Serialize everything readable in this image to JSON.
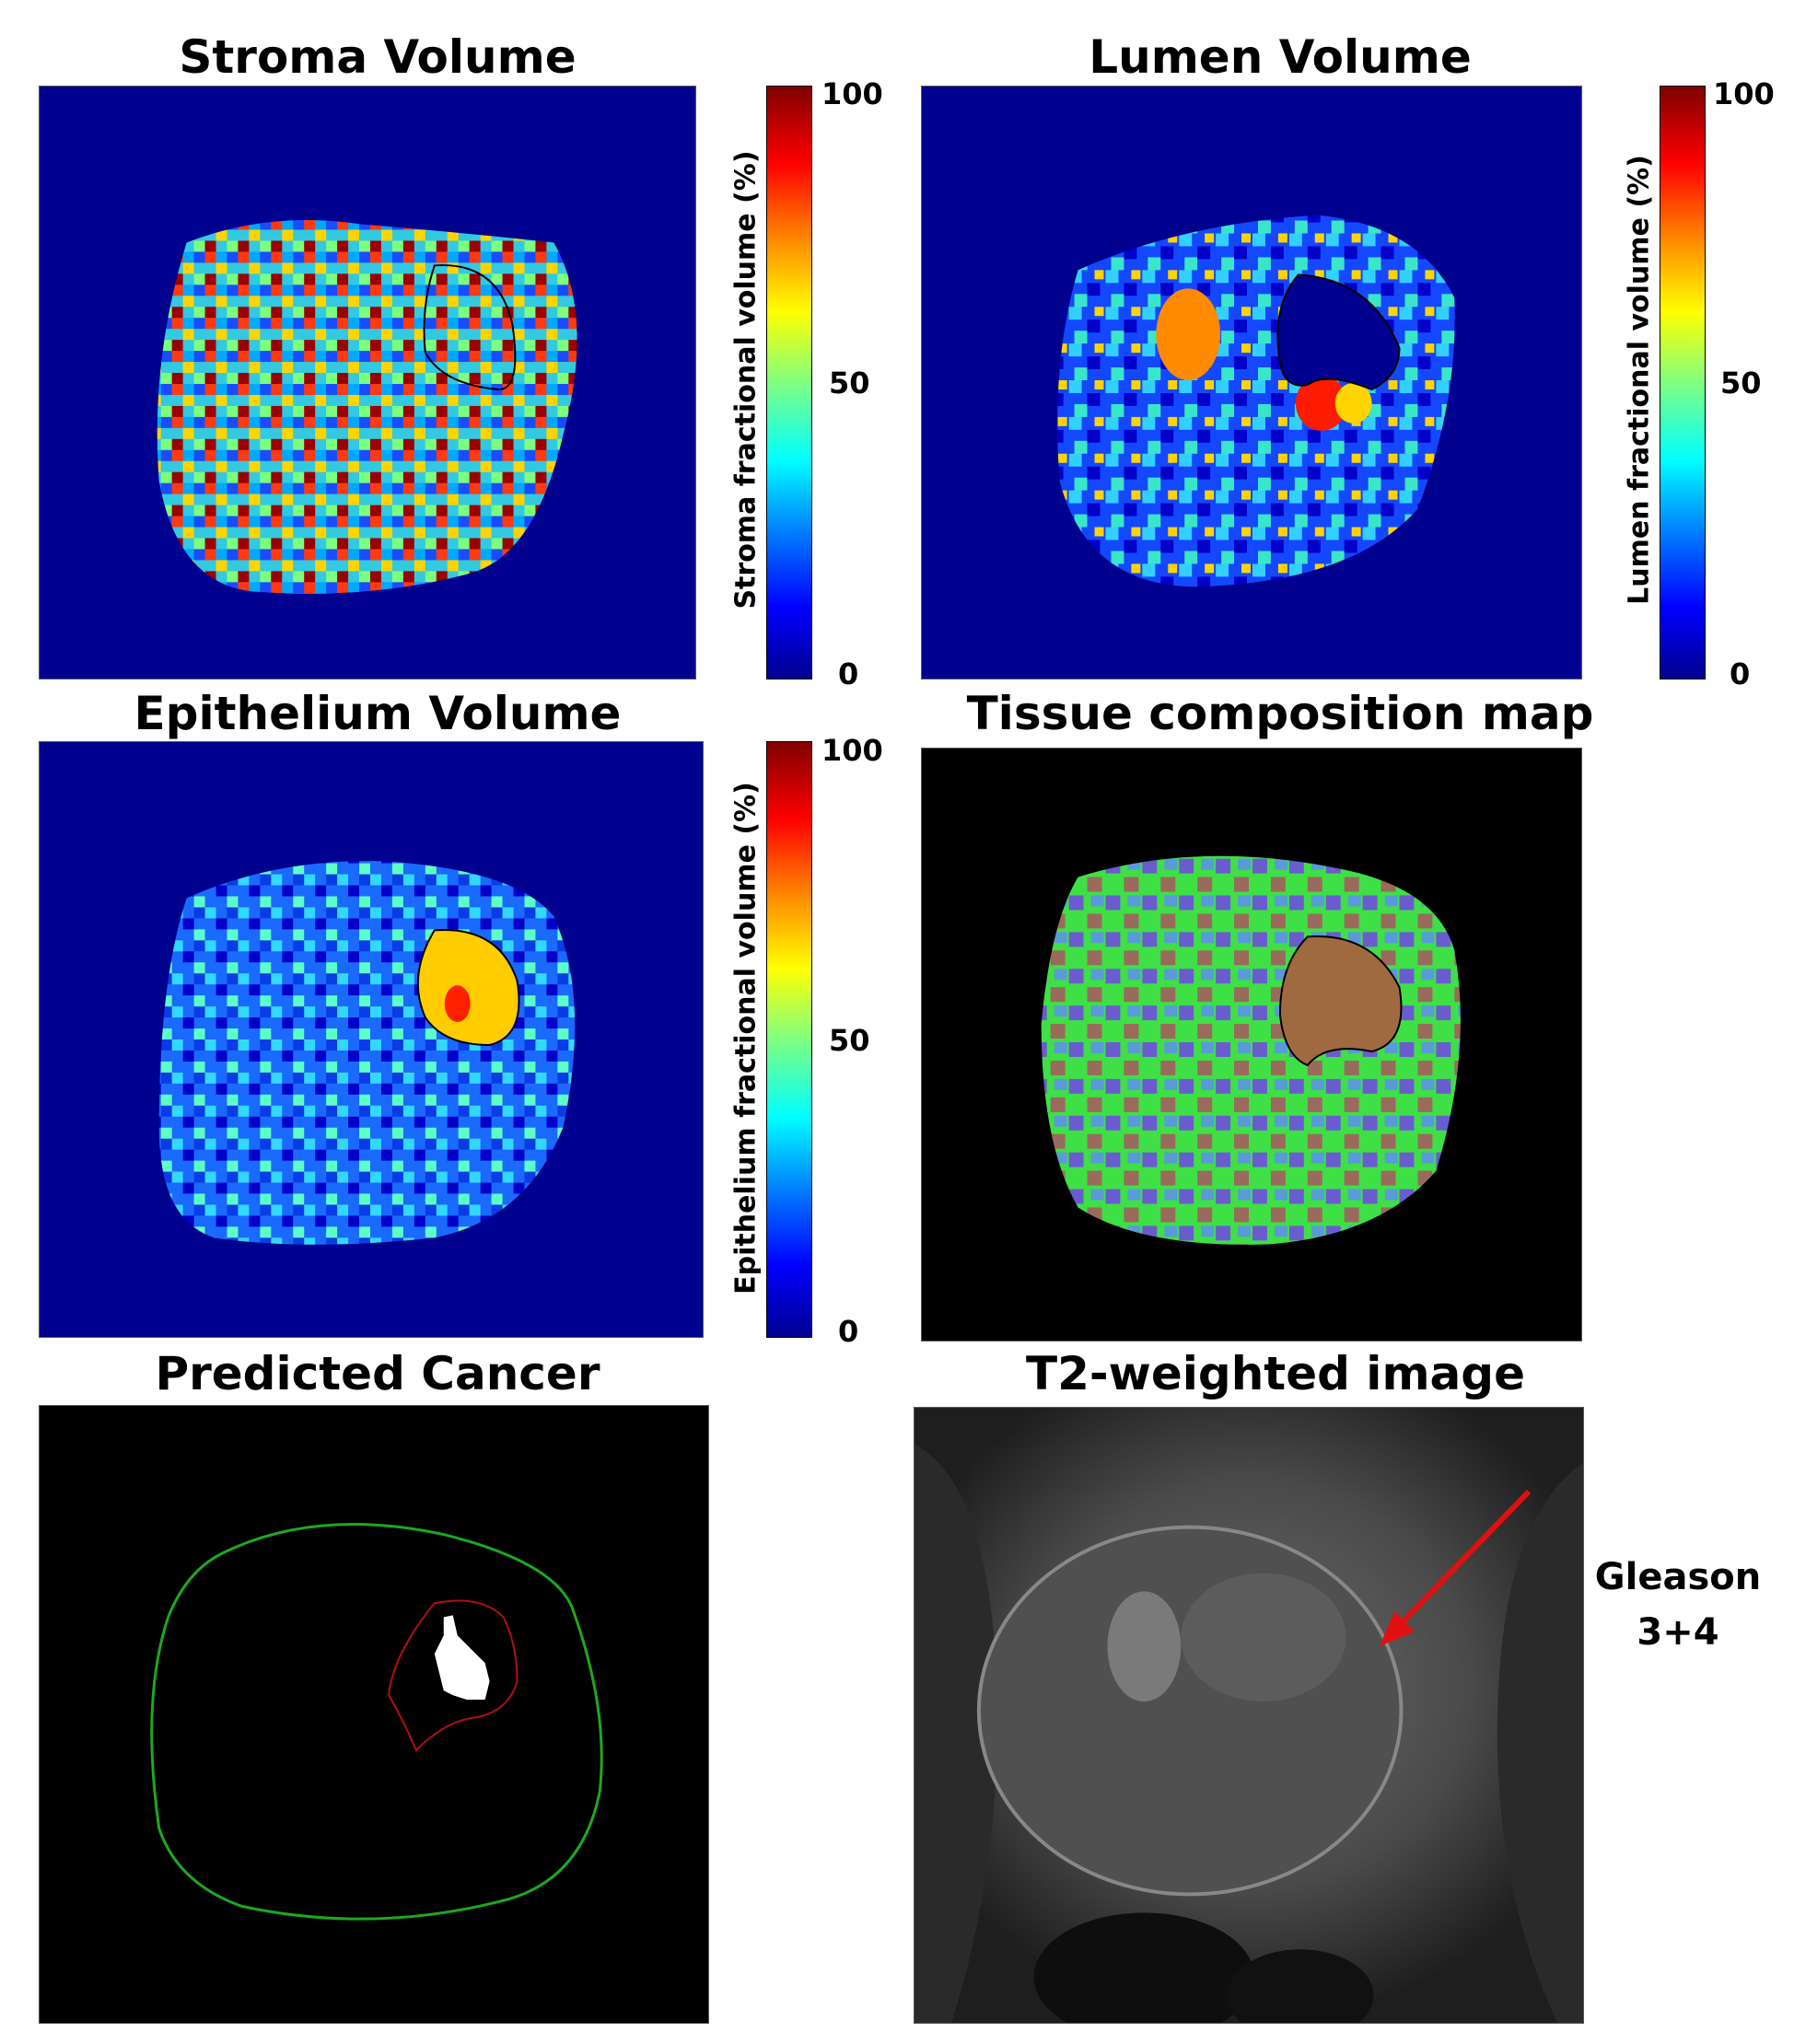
{
  "panels": {
    "stroma": {
      "title": "Stroma Volume",
      "colorbar_label": "Stroma fractional volume  (%)",
      "ticks": [
        "100",
        "50",
        "0"
      ]
    },
    "lumen": {
      "title": "Lumen Volume",
      "colorbar_label": "Lumen fractional volume  (%)",
      "ticks": [
        "100",
        "50",
        "0"
      ]
    },
    "epithelium": {
      "title": "Epithelium Volume",
      "colorbar_label": "Epithelium fractional volume  (%)",
      "ticks": [
        "100",
        "50",
        "0"
      ]
    },
    "composition": {
      "title": "Tissue composition map"
    },
    "predicted": {
      "title": "Predicted Cancer"
    },
    "t2": {
      "title": "T2-weighted image",
      "annotation_line1": "Gleason",
      "annotation_line2": "3+4"
    }
  },
  "colors": {
    "map_background": "#00008f",
    "dark_background": "#000000",
    "prostate_outline": "#1ea81e",
    "tumor_outline": "#b01010",
    "arrow": "#e01010"
  }
}
